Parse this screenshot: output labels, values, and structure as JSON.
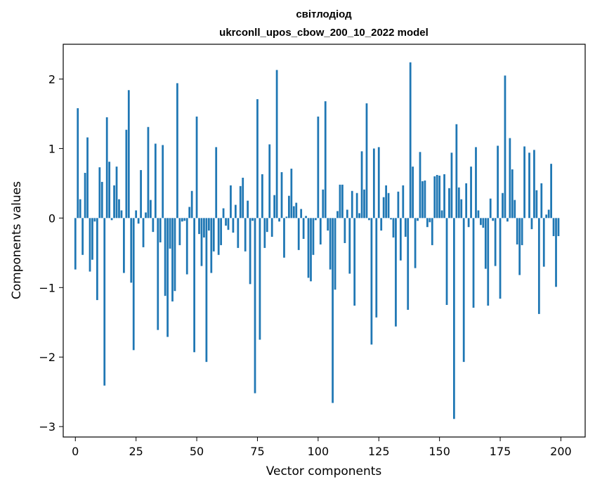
{
  "chart_data": {
    "type": "bar",
    "title": "світлодіод",
    "subtitle": "ukrconll_upos_cbow_200_10_2022 model",
    "xlabel": "Vector components",
    "ylabel": "Components values",
    "xlim": [
      -5,
      210
    ],
    "ylim": [
      -3.15,
      2.5
    ],
    "xticks": [
      0,
      25,
      50,
      75,
      100,
      125,
      150,
      175,
      200
    ],
    "yticks": [
      -3,
      -2,
      -1,
      0,
      1,
      2
    ],
    "ytick_labels": [
      "−3",
      "−2",
      "−1",
      "0",
      "1",
      "2"
    ],
    "bar_color": "#1f77b4",
    "grid": false,
    "x": [
      0,
      1,
      2,
      3,
      4,
      5,
      6,
      7,
      8,
      9,
      10,
      11,
      12,
      13,
      14,
      15,
      16,
      17,
      18,
      19,
      20,
      21,
      22,
      23,
      24,
      25,
      26,
      27,
      28,
      29,
      30,
      31,
      32,
      33,
      34,
      35,
      36,
      37,
      38,
      39,
      40,
      41,
      42,
      43,
      44,
      45,
      46,
      47,
      48,
      49,
      50,
      51,
      52,
      53,
      54,
      55,
      56,
      57,
      58,
      59,
      60,
      61,
      62,
      63,
      64,
      65,
      66,
      67,
      68,
      69,
      70,
      71,
      72,
      73,
      74,
      75,
      76,
      77,
      78,
      79,
      80,
      81,
      82,
      83,
      84,
      85,
      86,
      87,
      88,
      89,
      90,
      91,
      92,
      93,
      94,
      95,
      96,
      97,
      98,
      99,
      100,
      101,
      102,
      103,
      104,
      105,
      106,
      107,
      108,
      109,
      110,
      111,
      112,
      113,
      114,
      115,
      116,
      117,
      118,
      119,
      120,
      121,
      122,
      123,
      124,
      125,
      126,
      127,
      128,
      129,
      130,
      131,
      132,
      133,
      134,
      135,
      136,
      137,
      138,
      139,
      140,
      141,
      142,
      143,
      144,
      145,
      146,
      147,
      148,
      149,
      150,
      151,
      152,
      153,
      154,
      155,
      156,
      157,
      158,
      159,
      160,
      161,
      162,
      163,
      164,
      165,
      166,
      167,
      168,
      169,
      170,
      171,
      172,
      173,
      174,
      175,
      176,
      177,
      178,
      179,
      180,
      181,
      182,
      183,
      184,
      185,
      186,
      187,
      188,
      189,
      190,
      191,
      192,
      193,
      194,
      195,
      196,
      197,
      198,
      199
    ],
    "values": [
      -0.74,
      1.58,
      0.27,
      -0.53,
      0.65,
      1.16,
      -0.77,
      -0.6,
      -0.05,
      -1.18,
      0.73,
      0.52,
      -2.41,
      1.45,
      0.81,
      -0.03,
      0.47,
      0.74,
      0.27,
      0.11,
      -0.79,
      1.27,
      1.84,
      -0.93,
      -1.9,
      0.11,
      -0.08,
      0.69,
      -0.42,
      0.08,
      1.31,
      0.26,
      -0.2,
      1.07,
      -1.61,
      -0.35,
      1.05,
      -1.12,
      -1.71,
      -0.44,
      -1.2,
      -1.05,
      1.94,
      -0.39,
      -0.05,
      -0.04,
      -0.81,
      0.16,
      0.39,
      -1.93,
      1.46,
      -0.23,
      -0.69,
      -0.28,
      -2.07,
      -0.18,
      -0.79,
      -0.48,
      1.02,
      -0.53,
      -0.39,
      0.14,
      -0.11,
      -0.17,
      0.47,
      -0.21,
      0.19,
      -0.43,
      0.46,
      0.58,
      -0.48,
      0.25,
      -0.95,
      -0.04,
      -2.52,
      1.71,
      -1.75,
      0.63,
      -0.43,
      -0.2,
      1.06,
      -0.27,
      0.33,
      2.13,
      -0.05,
      0.66,
      -0.57,
      0.02,
      0.32,
      0.71,
      0.17,
      0.22,
      -0.46,
      0.13,
      -0.3,
      0.03,
      -0.86,
      -0.91,
      -0.53,
      -0.03,
      1.46,
      -0.38,
      0.41,
      1.68,
      -0.18,
      -0.74,
      -2.66,
      -1.03,
      0.1,
      0.48,
      0.48,
      -0.36,
      0.12,
      -0.8,
      0.39,
      -1.26,
      0.36,
      0.07,
      0.96,
      0.41,
      1.65,
      -0.03,
      -1.82,
      1.0,
      -1.43,
      1.02,
      -0.18,
      0.3,
      0.47,
      0.36,
      -0.02,
      -0.28,
      -1.56,
      0.38,
      -0.61,
      0.47,
      -0.27,
      -1.32,
      2.24,
      0.74,
      -0.72,
      -0.04,
      0.95,
      0.53,
      0.54,
      -0.13,
      -0.06,
      -0.39,
      0.6,
      0.62,
      0.61,
      0.11,
      0.63,
      -1.25,
      0.43,
      0.94,
      -2.89,
      1.35,
      0.44,
      0.27,
      -2.07,
      0.5,
      -0.13,
      0.74,
      -1.29,
      1.02,
      0.11,
      -0.1,
      -0.14,
      -0.73,
      -1.26,
      0.28,
      -0.04,
      -0.69,
      1.04,
      -1.16,
      0.36,
      2.05,
      -0.05,
      1.15,
      0.7,
      0.26,
      -0.38,
      -0.82,
      -0.39,
      1.03,
      0.0,
      0.94,
      -0.16,
      0.98,
      0.4,
      -1.38,
      0.5,
      -0.7,
      0.05,
      0.12,
      0.78,
      -0.26,
      -0.99,
      -0.26
    ]
  }
}
